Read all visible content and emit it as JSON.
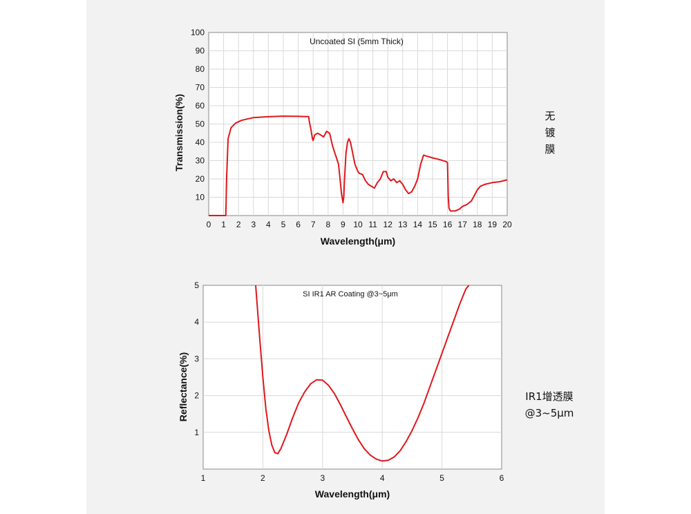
{
  "side_labels": {
    "top": [
      "无",
      "镀",
      "膜"
    ],
    "bottom_line1": "IR1增透膜",
    "bottom_line2": "@3~5μm"
  },
  "chart_data": [
    {
      "type": "line",
      "title": "Uncoated SI (5mm Thick)",
      "xlabel": "Wavelength(μm)",
      "ylabel": "Transmission(%)",
      "xlim": [
        0,
        20
      ],
      "ylim": [
        0,
        100
      ],
      "xticks": [
        0,
        1,
        2,
        3,
        4,
        5,
        6,
        7,
        8,
        9,
        10,
        11,
        12,
        13,
        14,
        15,
        16,
        17,
        18,
        19,
        20
      ],
      "yticks": [
        10,
        20,
        30,
        40,
        50,
        60,
        70,
        80,
        90,
        100
      ],
      "grid": true,
      "color": "#e0161b",
      "series": [
        {
          "x": [
            0,
            0.9,
            1.0,
            1.05,
            1.1,
            1.15,
            1.2,
            1.3,
            1.5,
            1.8,
            2.2,
            3,
            4,
            5,
            6,
            6.7,
            6.75,
            6.85,
            6.95,
            7.0,
            7.1,
            7.3,
            7.5,
            7.7,
            7.9,
            8.1,
            8.3,
            8.5,
            8.7,
            8.8,
            8.9,
            9.0,
            9.05,
            9.1,
            9.2,
            9.3,
            9.4,
            9.5,
            9.6,
            9.7,
            9.8,
            9.9,
            10.0,
            10.1,
            10.3,
            10.5,
            10.7,
            10.9,
            11.1,
            11.3,
            11.5,
            11.7,
            11.9,
            12.0,
            12.2,
            12.4,
            12.6,
            12.8,
            13.0,
            13.2,
            13.4,
            13.6,
            13.8,
            14.0,
            14.2,
            14.4,
            14.6,
            14.8,
            15.0,
            15.5,
            15.9,
            16.0,
            16.05,
            16.1,
            16.2,
            16.5,
            16.8,
            17.0,
            17.3,
            17.6,
            17.8,
            18.0,
            18.2,
            18.5,
            19.0,
            19.5,
            20.0
          ],
          "y": [
            0,
            0,
            0,
            0,
            0,
            0,
            20,
            42,
            48,
            50.5,
            52,
            53.5,
            54,
            54.3,
            54.2,
            54,
            51,
            47,
            42,
            41,
            44,
            45,
            44,
            43,
            46,
            45,
            38,
            33,
            28,
            20,
            12,
            7,
            10,
            20,
            34,
            40,
            42,
            40,
            36,
            32,
            28,
            26,
            24,
            23,
            22.5,
            19,
            17,
            16,
            15,
            18,
            20,
            24,
            24,
            21,
            19,
            20,
            18,
            19,
            17,
            14,
            12,
            13,
            16,
            20,
            28,
            33,
            32.5,
            32,
            31.5,
            30.5,
            29.5,
            29,
            10,
            4,
            2.5,
            2.5,
            3.5,
            5,
            6,
            8,
            11,
            14,
            16,
            17,
            18,
            18.5,
            19.5
          ]
        }
      ]
    },
    {
      "type": "line",
      "title": "SI IR1 AR Coating @3~5μm",
      "xlabel": "Wavelength(μm)",
      "ylabel": "Reflectance(%)",
      "xlim": [
        1,
        6
      ],
      "ylim": [
        0,
        5
      ],
      "xticks": [
        1,
        2,
        3,
        4,
        5,
        6
      ],
      "yticks": [
        1,
        2,
        3,
        4,
        5
      ],
      "grid": true,
      "color": "#e0161b",
      "series": [
        {
          "x": [
            1.88,
            1.95,
            2.0,
            2.05,
            2.1,
            2.15,
            2.2,
            2.25,
            2.3,
            2.4,
            2.5,
            2.6,
            2.7,
            2.8,
            2.9,
            3.0,
            3.1,
            3.2,
            3.3,
            3.4,
            3.5,
            3.6,
            3.7,
            3.8,
            3.9,
            4.0,
            4.1,
            4.2,
            4.3,
            4.4,
            4.5,
            4.6,
            4.7,
            4.8,
            4.9,
            5.0,
            5.1,
            5.2,
            5.3,
            5.4,
            5.45
          ],
          "y": [
            5.0,
            3.5,
            2.5,
            1.65,
            1.05,
            0.65,
            0.45,
            0.42,
            0.55,
            0.95,
            1.4,
            1.8,
            2.1,
            2.32,
            2.43,
            2.42,
            2.28,
            2.05,
            1.75,
            1.42,
            1.1,
            0.8,
            0.55,
            0.38,
            0.27,
            0.22,
            0.24,
            0.33,
            0.5,
            0.75,
            1.05,
            1.4,
            1.8,
            2.25,
            2.7,
            3.15,
            3.6,
            4.05,
            4.5,
            4.9,
            5.05
          ]
        }
      ]
    }
  ]
}
